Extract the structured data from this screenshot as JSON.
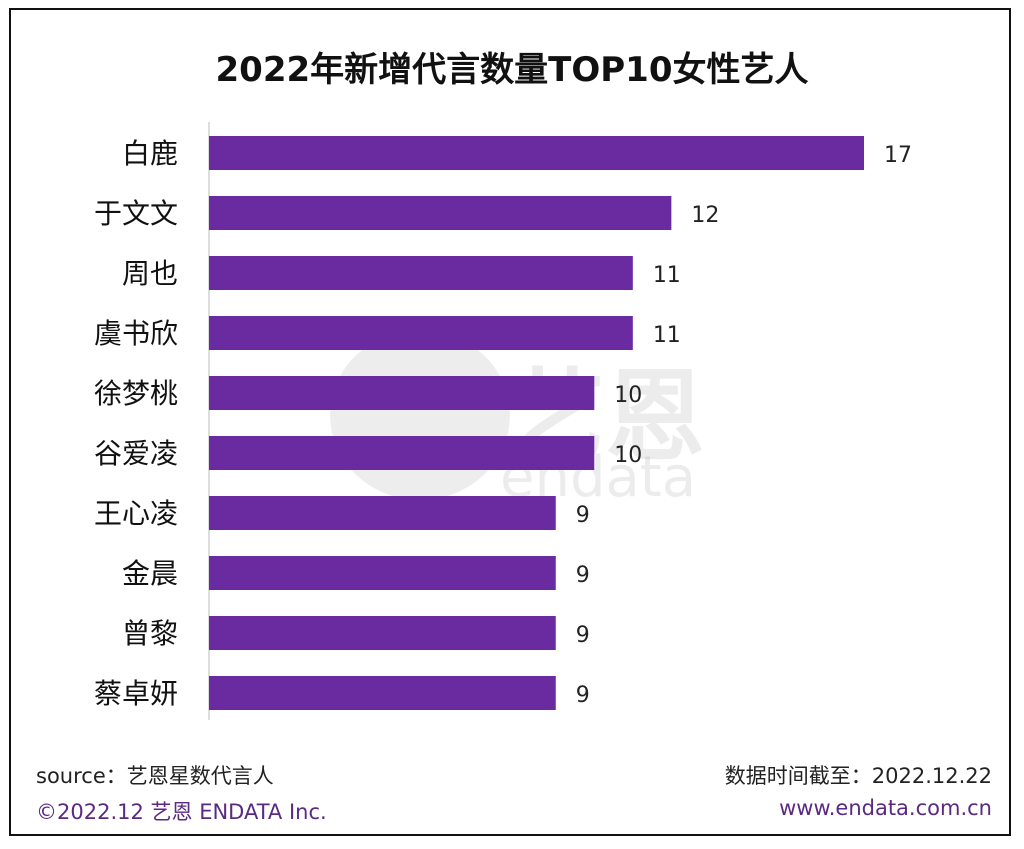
{
  "chart_data": {
    "type": "bar",
    "orientation": "horizontal",
    "title": "2022年新增代言数量TOP10女性艺人",
    "categories": [
      "白鹿",
      "于文文",
      "周也",
      "虞书欣",
      "徐梦桃",
      "谷爱凌",
      "王心凌",
      "金晨",
      "曾黎",
      "蔡卓妍"
    ],
    "values": [
      17,
      12,
      11,
      11,
      10,
      10,
      9,
      9,
      9,
      9
    ],
    "xlim": [
      0,
      17
    ],
    "grid": false,
    "data_labels": true,
    "bar_color": "#6a2aa0"
  },
  "footer": {
    "source": "source：艺恩星数代言人",
    "date": "数据时间截至：2022.12.22",
    "copyright": "©2022.12  艺恩 ENDATA Inc.",
    "website": "www.endata.com.cn"
  },
  "watermark": {
    "logo_text": "艺恩",
    "brand": "endata"
  }
}
